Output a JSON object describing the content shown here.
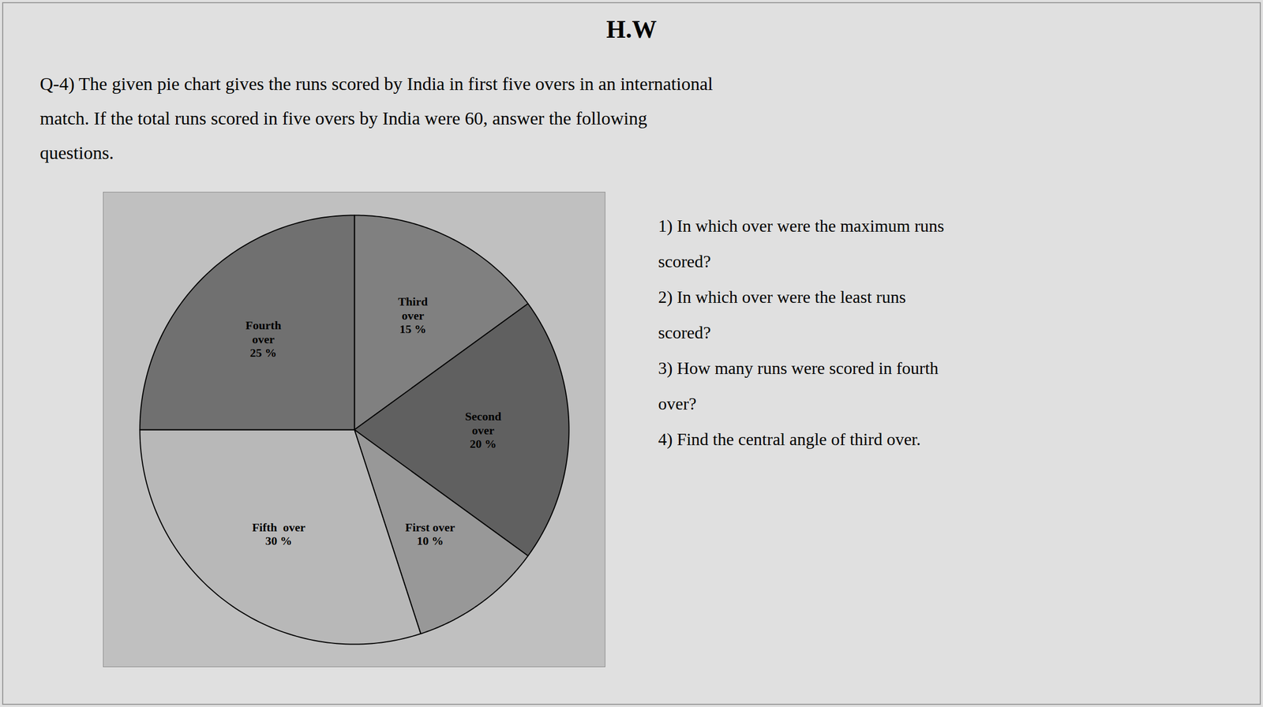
{
  "chart_data": {
    "type": "pie",
    "title": "H.W",
    "subtitle": [
      "Q-4) The given pie chart gives the runs scored by India in first five overs in an international",
      "match. If the total runs scored in five overs by India were 60, answer the following",
      "questions."
    ],
    "annotations": [
      "1) In which over were the maximum runs",
      "scored?",
      "2) In which over were the least runs",
      "scored?",
      "3) How many runs were scored in fourth",
      "over?",
      "4) Find the central angle of third over."
    ],
    "categories": [
      "Third\nover",
      "Second\nover",
      "First over",
      "Fifth  over",
      "Fourth\nover"
    ],
    "values": [
      15,
      20,
      10,
      30,
      25
    ],
    "colors": [
      "#808080",
      "#606060",
      "#989898",
      "#b8b8b8",
      "#707070"
    ],
    "data_labels": true,
    "value_labels": [
      "15 %",
      "20 %",
      "10 %",
      "30 %",
      "25 %"
    ]
  }
}
